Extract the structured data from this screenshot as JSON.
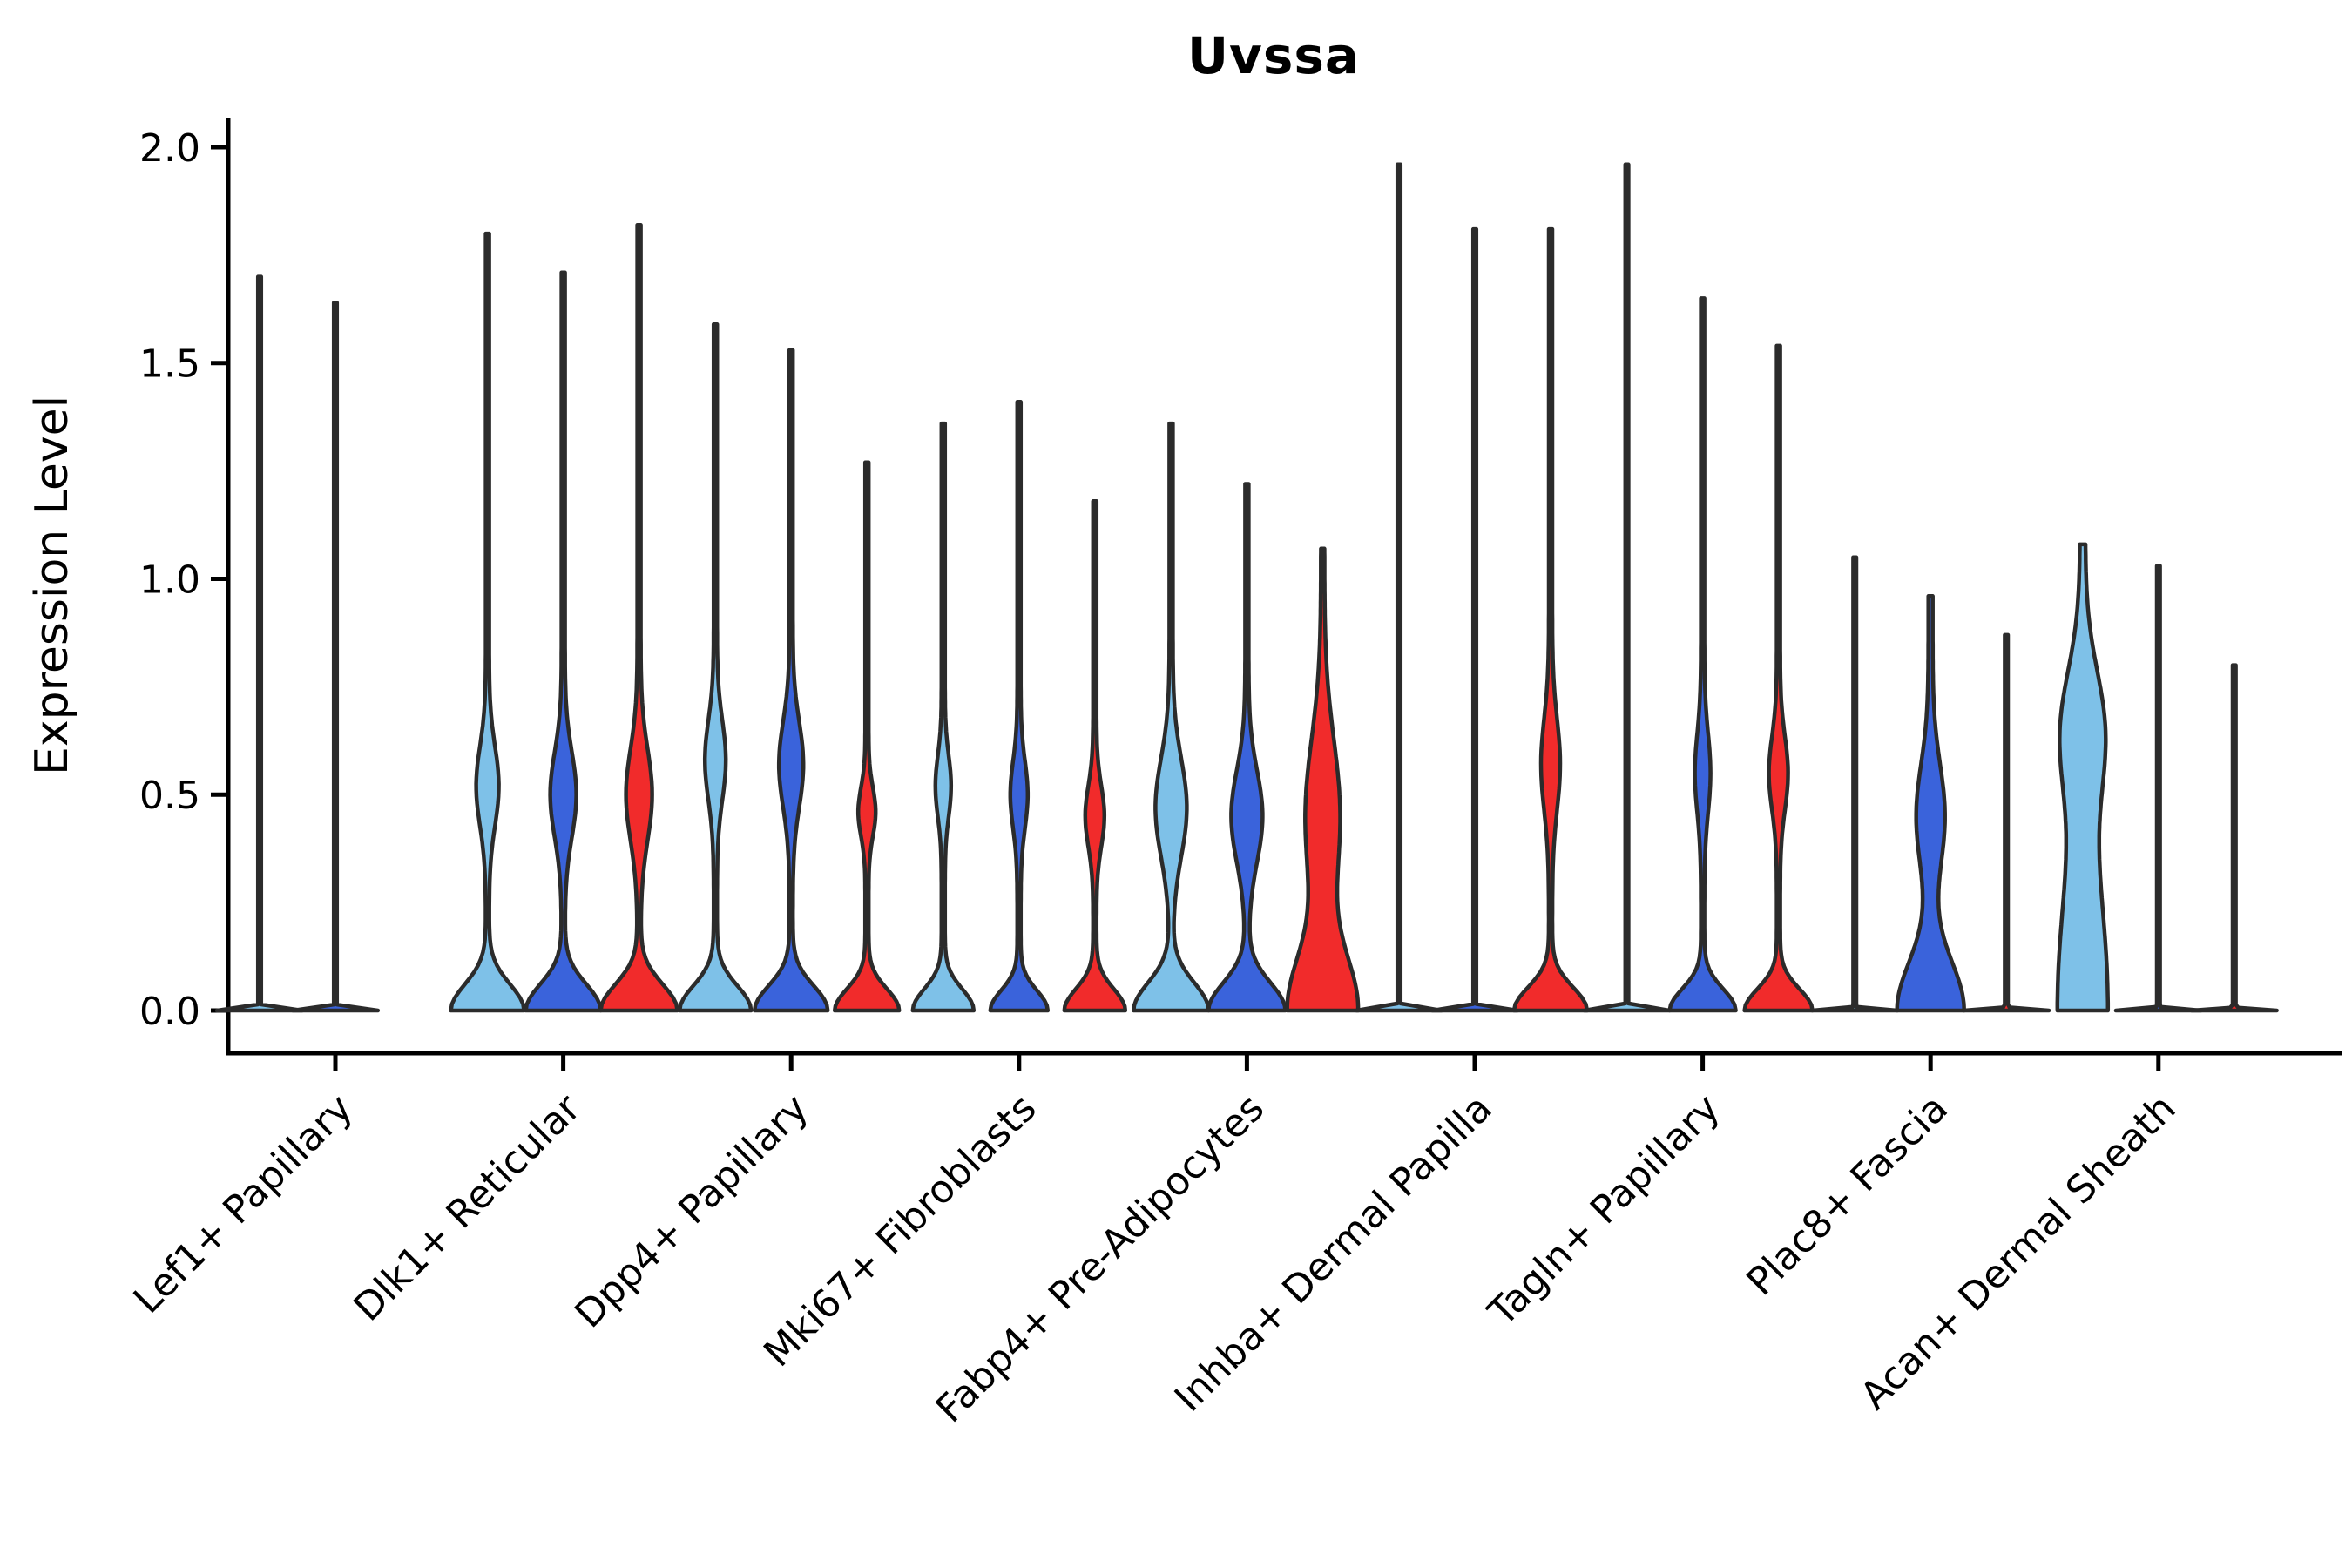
{
  "title": "Uvssa",
  "axes": {
    "y_label": "Expression Level",
    "y_ticks": [
      "0.0",
      "0.5",
      "1.0",
      "1.5",
      "2.0"
    ],
    "y_tick_values": [
      0.0,
      0.5,
      1.0,
      1.5,
      2.0
    ],
    "x_categories": [
      "Lef1+ Papillary",
      "Dlk1+ Reticular",
      "Dpp4+ Papillary",
      "Mki67+ Fibroblasts",
      "Fabp4+ Pre-Adipocytes",
      "Inhba+ Dermal Papilla",
      "Tagln+ Papillary",
      "Plac8+ Fascia",
      "Acan+ Dermal Sheath"
    ]
  },
  "colors": {
    "light_blue": "#7EC1E8",
    "blue": "#3A63DB",
    "red": "#F12B2B",
    "outline": "#2B2B2B",
    "background": "#FFFFFF",
    "text": "#000000"
  },
  "chart_data": {
    "type": "violin",
    "title": "Uvssa",
    "xlabel": "",
    "ylabel": "Expression Level",
    "ylim": [
      0,
      2.0
    ],
    "y_ticks": [
      0.0,
      0.5,
      1.0,
      1.5,
      2.0
    ],
    "legend": "none",
    "grid": false,
    "conditions": [
      "light_blue",
      "blue",
      "red"
    ],
    "categories": [
      "Lef1+ Papillary",
      "Dlk1+ Reticular",
      "Dpp4+ Papillary",
      "Mki67+ Fibroblasts",
      "Fabp4+ Pre-Adipocytes",
      "Inhba+ Dermal Papilla",
      "Tagln+ Papillary",
      "Plac8+ Fascia",
      "Acan+ Dermal Sheath"
    ],
    "groups": [
      {
        "category": "Lef1+ Papillary",
        "violins": [
          {
            "color": "light_blue",
            "slot": 0,
            "max_expression": 1.7,
            "neck": 1.8,
            "bulge": null,
            "base": {
              "spread": 0.004,
              "halfwidth": 47
            }
          },
          {
            "color": "blue",
            "slot": 1,
            "max_expression": 1.64,
            "neck": 1.8,
            "bulge": null,
            "base": {
              "spread": 0.004,
              "halfwidth": 47
            }
          }
        ]
      },
      {
        "category": "Dlk1+ Reticular",
        "violins": [
          {
            "color": "light_blue",
            "slot": 0,
            "max_expression": 1.8,
            "neck": 2.0,
            "bulge": {
              "center": 0.52,
              "spread": 0.13,
              "halfwidth": 11
            },
            "base": {
              "spread": 0.085,
              "halfwidth": 40
            }
          },
          {
            "color": "blue",
            "slot": 1,
            "max_expression": 1.71,
            "neck": 2.0,
            "bulge": {
              "center": 0.5,
              "spread": 0.14,
              "halfwidth": 13
            },
            "base": {
              "spread": 0.085,
              "halfwidth": 41
            }
          },
          {
            "color": "red",
            "slot": 2,
            "max_expression": 1.82,
            "neck": 2.0,
            "bulge": {
              "center": 0.5,
              "spread": 0.15,
              "halfwidth": 13
            },
            "base": {
              "spread": 0.085,
              "halfwidth": 42
            }
          }
        ]
      },
      {
        "category": "Dpp4+ Papillary",
        "violins": [
          {
            "color": "light_blue",
            "slot": 0,
            "max_expression": 1.59,
            "neck": 2.0,
            "bulge": {
              "center": 0.58,
              "spread": 0.13,
              "halfwidth": 10
            },
            "base": {
              "spread": 0.08,
              "halfwidth": 39
            }
          },
          {
            "color": "blue",
            "slot": 1,
            "max_expression": 1.53,
            "neck": 2.0,
            "bulge": {
              "center": 0.57,
              "spread": 0.14,
              "halfwidth": 12
            },
            "base": {
              "spread": 0.08,
              "halfwidth": 40
            }
          },
          {
            "color": "red",
            "slot": 2,
            "max_expression": 1.27,
            "neck": 2.0,
            "bulge": {
              "center": 0.46,
              "spread": 0.08,
              "halfwidth": 8
            },
            "base": {
              "spread": 0.07,
              "halfwidth": 35
            }
          }
        ]
      },
      {
        "category": "Mki67+ Fibroblasts",
        "violins": [
          {
            "color": "light_blue",
            "slot": 0,
            "max_expression": 1.36,
            "neck": 2.0,
            "bulge": {
              "center": 0.52,
              "spread": 0.1,
              "halfwidth": 7
            },
            "base": {
              "spread": 0.07,
              "halfwidth": 33
            }
          },
          {
            "color": "blue",
            "slot": 1,
            "max_expression": 1.41,
            "neck": 2.0,
            "bulge": {
              "center": 0.5,
              "spread": 0.11,
              "halfwidth": 8
            },
            "base": {
              "spread": 0.065,
              "halfwidth": 31
            }
          },
          {
            "color": "red",
            "slot": 2,
            "max_expression": 1.18,
            "neck": 2.0,
            "bulge": {
              "center": 0.45,
              "spread": 0.1,
              "halfwidth": 9
            },
            "base": {
              "spread": 0.07,
              "halfwidth": 33
            }
          }
        ]
      },
      {
        "category": "Fabp4+ Pre-Adipocytes",
        "violins": [
          {
            "color": "light_blue",
            "slot": 0,
            "max_expression": 1.36,
            "neck": 2.0,
            "bulge": {
              "center": 0.47,
              "spread": 0.16,
              "halfwidth": 16
            },
            "base": {
              "spread": 0.09,
              "halfwidth": 41
            }
          },
          {
            "color": "blue",
            "slot": 1,
            "max_expression": 1.22,
            "neck": 2.0,
            "bulge": {
              "center": 0.45,
              "spread": 0.15,
              "halfwidth": 16
            },
            "base": {
              "spread": 0.09,
              "halfwidth": 42
            }
          },
          {
            "color": "red",
            "slot": 2,
            "max_expression": 1.07,
            "neck": 2.0,
            "bulge": {
              "center": 0.45,
              "spread": 0.25,
              "halfwidth": 18
            },
            "base": {
              "spread": 0.18,
              "halfwidth": 38
            }
          }
        ]
      },
      {
        "category": "Inhba+ Dermal Papilla",
        "violins": [
          {
            "color": "light_blue",
            "slot": 0,
            "max_expression": 1.96,
            "neck": 1.8,
            "bulge": null,
            "base": {
              "spread": 0.004,
              "halfwidth": 47
            }
          },
          {
            "color": "blue",
            "slot": 1,
            "max_expression": 1.81,
            "neck": 1.8,
            "bulge": null,
            "base": {
              "spread": 0.004,
              "halfwidth": 47
            }
          },
          {
            "color": "red",
            "slot": 2,
            "max_expression": 1.81,
            "neck": 2.0,
            "bulge": {
              "center": 0.57,
              "spread": 0.15,
              "halfwidth": 9
            },
            "base": {
              "spread": 0.075,
              "halfwidth": 40
            }
          }
        ]
      },
      {
        "category": "Tagln+ Papillary",
        "violins": [
          {
            "color": "light_blue",
            "slot": 0,
            "max_expression": 1.96,
            "neck": 1.8,
            "bulge": null,
            "base": {
              "spread": 0.004,
              "halfwidth": 47
            }
          },
          {
            "color": "blue",
            "slot": 1,
            "max_expression": 1.65,
            "neck": 2.0,
            "bulge": {
              "center": 0.55,
              "spread": 0.13,
              "halfwidth": 7
            },
            "base": {
              "spread": 0.07,
              "halfwidth": 36
            }
          },
          {
            "color": "red",
            "slot": 2,
            "max_expression": 1.54,
            "neck": 2.0,
            "bulge": {
              "center": 0.55,
              "spread": 0.12,
              "halfwidth": 9
            },
            "base": {
              "spread": 0.07,
              "halfwidth": 37
            }
          }
        ]
      },
      {
        "category": "Plac8+ Fascia",
        "violins": [
          {
            "color": "light_blue",
            "slot": 0,
            "max_expression": 1.05,
            "neck": 1.8,
            "bulge": null,
            "base": {
              "spread": 0.004,
              "halfwidth": 47
            }
          },
          {
            "color": "blue",
            "slot": 1,
            "max_expression": 0.96,
            "neck": 2.5,
            "bulge": {
              "center": 0.45,
              "spread": 0.17,
              "halfwidth": 14
            },
            "base": {
              "spread": 0.16,
              "halfwidth": 36
            }
          },
          {
            "color": "red",
            "slot": 2,
            "max_expression": 0.87,
            "neck": 1.8,
            "bulge": null,
            "base": {
              "spread": 0.004,
              "halfwidth": 47
            }
          }
        ]
      },
      {
        "category": "Acan+ Dermal Sheath",
        "violins": [
          {
            "color": "light_blue",
            "slot": 0,
            "max_expression": 1.08,
            "neck": 3.0,
            "bulge": {
              "center": 0.65,
              "spread": 0.2,
              "halfwidth": 20
            },
            "base": {
              "spread": 0.45,
              "halfwidth": 26
            }
          },
          {
            "color": "blue",
            "slot": 1,
            "max_expression": 1.03,
            "neck": 1.8,
            "bulge": null,
            "base": {
              "spread": 0.004,
              "halfwidth": 47
            }
          },
          {
            "color": "red",
            "slot": 2,
            "max_expression": 0.8,
            "neck": 1.8,
            "bulge": null,
            "base": {
              "spread": 0.004,
              "halfwidth": 47
            }
          }
        ]
      }
    ]
  }
}
